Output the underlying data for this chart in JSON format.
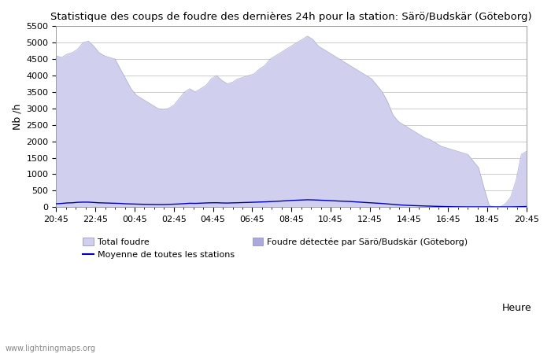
{
  "title": "Statistique des coups de foudre des dernières 24h pour la station: Särö/Budskär (Göteborg)",
  "ylabel": "Nb /h",
  "xlabel": "Heure",
  "ylim": [
    0,
    5500
  ],
  "yticks": [
    0,
    500,
    1000,
    1500,
    2000,
    2500,
    3000,
    3500,
    4000,
    4500,
    5000,
    5500
  ],
  "xtick_labels": [
    "20:45",
    "22:45",
    "00:45",
    "02:45",
    "04:45",
    "06:45",
    "08:45",
    "10:45",
    "12:45",
    "14:45",
    "16:45",
    "18:45",
    "20:45"
  ],
  "bg_color": "#ffffff",
  "plot_bg_color": "#ffffff",
  "grid_color": "#cccccc",
  "total_fill_color": "#d0d0ee",
  "total_edge_color": "#aaaacc",
  "station_fill_color": "#aaaadd",
  "station_edge_color": "#8888bb",
  "mean_line_color": "#0000bb",
  "watermark": "www.lightningmaps.org",
  "legend_labels": [
    "Total foudre",
    "Moyenne de toutes les stations",
    "Foudre détectée par Särö/Budskär (Göteborg)"
  ],
  "total_foudre": [
    4600,
    4550,
    4650,
    4700,
    4800,
    5000,
    5050,
    4900,
    4700,
    4600,
    4550,
    4500,
    4200,
    3900,
    3600,
    3400,
    3300,
    3200,
    3100,
    3000,
    2950,
    3000,
    3100,
    3300,
    3500,
    3600,
    3500,
    3600,
    3700,
    3900,
    4000,
    3850,
    3750,
    3800,
    3900,
    3950,
    4000,
    4050,
    4200,
    4300,
    4500,
    4600,
    4700,
    4800,
    4900,
    5000,
    5100,
    5200,
    5100,
    4900,
    4800,
    4700,
    4600,
    4500,
    4400,
    4300,
    4200,
    4100,
    4000,
    3900,
    3700,
    3500,
    3200,
    2800,
    2600,
    2500,
    2400,
    2300,
    2200,
    2100,
    2050,
    1950,
    1850,
    1800,
    1750,
    1700,
    1650,
    1600,
    1400,
    1200,
    600,
    50,
    0,
    0,
    100,
    300,
    800,
    1600,
    1700
  ],
  "mean_foudre": [
    100,
    110,
    125,
    130,
    145,
    150,
    150,
    140,
    130,
    125,
    120,
    115,
    110,
    100,
    95,
    90,
    85,
    82,
    80,
    78,
    78,
    82,
    88,
    95,
    105,
    115,
    112,
    118,
    125,
    130,
    132,
    125,
    122,
    128,
    132,
    138,
    142,
    148,
    153,
    158,
    165,
    172,
    182,
    192,
    202,
    208,
    215,
    222,
    218,
    212,
    205,
    198,
    190,
    182,
    175,
    168,
    158,
    148,
    138,
    128,
    118,
    108,
    95,
    82,
    68,
    58,
    50,
    44,
    38,
    32,
    28,
    22,
    18,
    14,
    10,
    8,
    6,
    5,
    5,
    5,
    5,
    5,
    5,
    5,
    5,
    5,
    8,
    12,
    18
  ]
}
